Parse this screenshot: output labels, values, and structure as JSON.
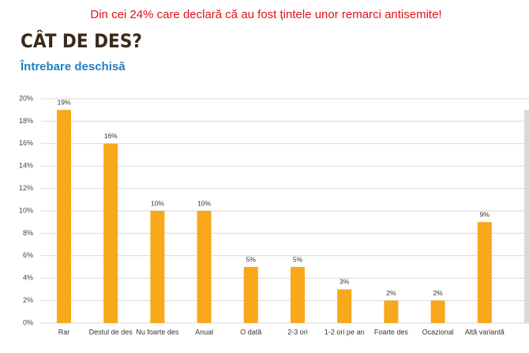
{
  "chart_data": {
    "type": "bar",
    "annotation": "Din cei 24% care declară că au fost țintele unor remarci antisemite!",
    "title": "CÂT DE DES?",
    "subtitle": "Întrebare deschisă",
    "categories": [
      "Rar",
      "Destul de des",
      "Nu foarte des",
      "Anual",
      "O dată",
      "2-3 ori",
      "1-2 ori pe an",
      "Foarte des",
      "Ocazional",
      "Altă variantă",
      null
    ],
    "values": [
      19,
      16,
      10,
      10,
      5,
      5,
      3,
      2,
      2,
      9,
      19
    ],
    "value_labels": [
      "19%",
      "16%",
      "10%",
      "10%",
      "5%",
      "5%",
      "3%",
      "2%",
      "2%",
      "9%",
      null
    ],
    "colors": [
      "#f7a81b",
      "#f7a81b",
      "#f7a81b",
      "#f7a81b",
      "#f7a81b",
      "#f7a81b",
      "#f7a81b",
      "#f7a81b",
      "#f7a81b",
      "#f7a81b",
      "#d9d9d9"
    ],
    "ylim": [
      0,
      20
    ],
    "yticks": [
      {
        "value": 0,
        "label": "0%"
      },
      {
        "value": 2,
        "label": "2%"
      },
      {
        "value": 4,
        "label": "4%"
      },
      {
        "value": 6,
        "label": "6%"
      },
      {
        "value": 8,
        "label": "8%"
      },
      {
        "value": 10,
        "label": "10%"
      },
      {
        "value": 12,
        "label": "12%"
      },
      {
        "value": 14,
        "label": "14%"
      },
      {
        "value": 16,
        "label": "16%"
      },
      {
        "value": 18,
        "label": "18%"
      },
      {
        "value": 20,
        "label": "20%"
      }
    ],
    "grid": true
  }
}
